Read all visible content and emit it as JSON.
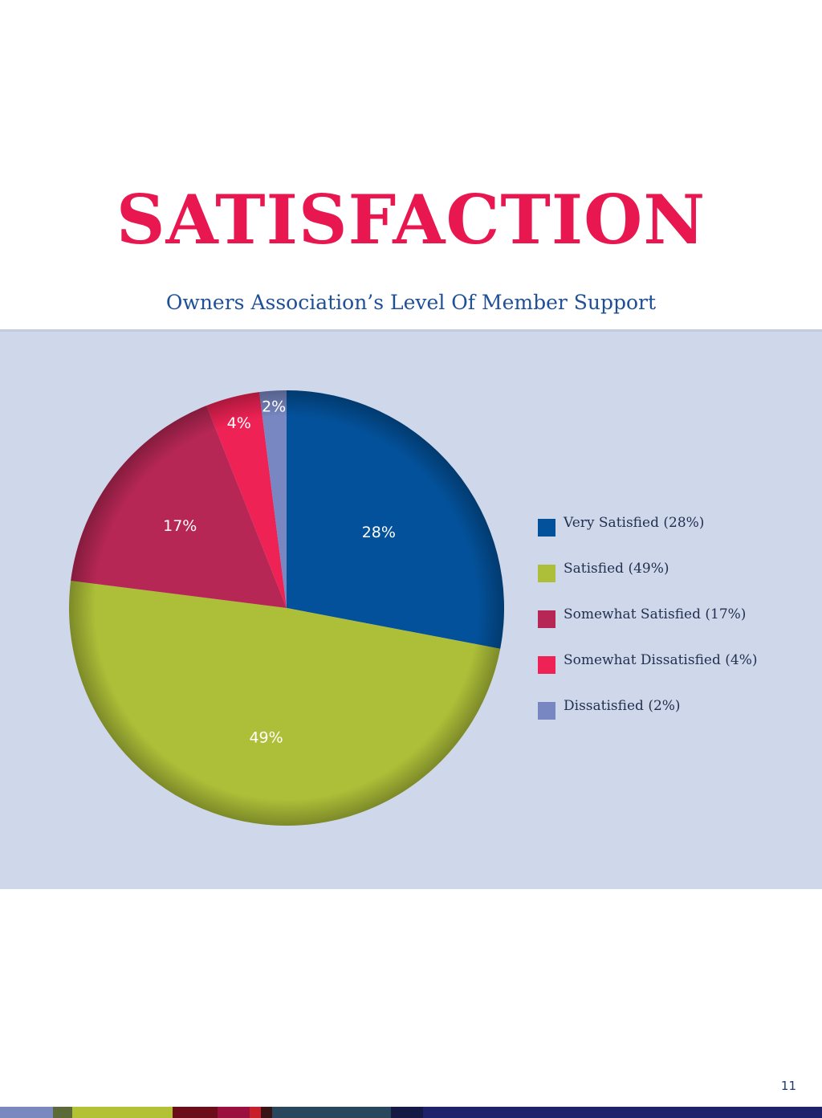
{
  "page": {
    "title": "SATISFACTION",
    "subtitle": "Owners Association’s Level Of Member Support",
    "page_number": "11",
    "title_color": "#e8174f",
    "subtitle_color": "#1f4f95",
    "panel_color": "#cfd7eb"
  },
  "chart_data": {
    "type": "pie",
    "title": "SATISFACTION",
    "subtitle": "Owners Association’s Level Of Member Support",
    "start": "12 o'clock",
    "direction": "clockwise",
    "legend_position": "right",
    "slices": [
      {
        "label": "Very Satisfied (28%)",
        "value": 28,
        "data_label": "28%",
        "color": "#03519a"
      },
      {
        "label": "Satisfied (49%)",
        "value": 49,
        "data_label": "49%",
        "color": "#adbf38"
      },
      {
        "label": "Somewhat Satisfied (17%)",
        "value": 17,
        "data_label": "17%",
        "color": "#b72755"
      },
      {
        "label": "Somewhat Dissatisfied (4%)",
        "value": 4,
        "data_label": "4%",
        "color": "#ee2254"
      },
      {
        "label": "Dissatisfied (2%)",
        "value": 2,
        "data_label": "2%",
        "color": "#7886c2"
      }
    ]
  },
  "footer": {
    "color_strip": [
      "#7a88c0",
      "#5c6a3a",
      "#b3c234",
      "#6b0e1a",
      "#9c1040",
      "#c8202a",
      "#3a1414",
      "#28475c",
      "#141a44",
      "#1d226b"
    ]
  }
}
